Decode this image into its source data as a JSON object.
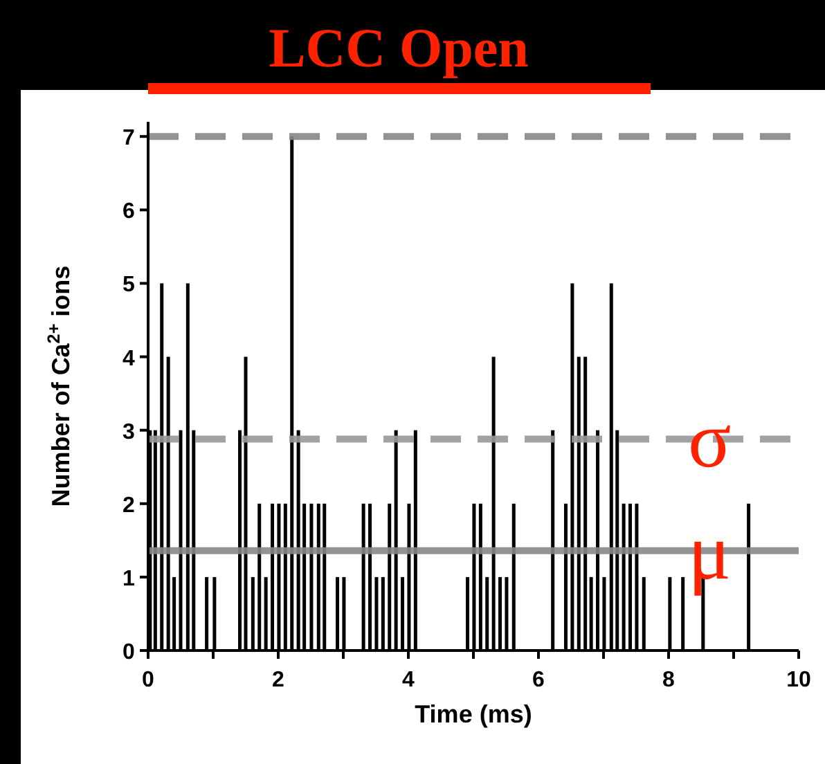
{
  "chart_data": {
    "type": "bar",
    "title": "LCC Open",
    "xlabel": "Time (ms)",
    "ylabel": "Number of Ca$^{2+}$ ions",
    "x": [
      0.03,
      0.11,
      0.21,
      0.31,
      0.4,
      0.5,
      0.61,
      0.7,
      0.9,
      1.02,
      1.41,
      1.5,
      1.61,
      1.71,
      1.81,
      1.91,
      2.01,
      2.11,
      2.21,
      2.31,
      2.4,
      2.51,
      2.62,
      2.71,
      2.91,
      3.01,
      3.31,
      3.41,
      3.51,
      3.61,
      3.71,
      3.81,
      3.91,
      4.01,
      4.11,
      4.91,
      5.01,
      5.11,
      5.21,
      5.31,
      5.41,
      5.51,
      5.62,
      6.22,
      6.42,
      6.52,
      6.62,
      6.72,
      6.81,
      6.91,
      7.01,
      7.12,
      7.21,
      7.31,
      7.41,
      7.51,
      7.62,
      8.02,
      8.22,
      8.53,
      9.23
    ],
    "values": [
      3,
      3,
      5,
      4,
      1,
      3,
      5,
      3,
      1,
      1,
      3,
      4,
      1,
      2,
      1,
      2,
      2,
      2,
      7,
      3,
      2,
      2,
      2,
      2,
      1,
      1,
      2,
      2,
      1,
      1,
      2,
      3,
      1,
      2,
      3,
      1,
      2,
      2,
      1,
      4,
      1,
      1,
      2,
      3,
      2,
      5,
      4,
      4,
      1,
      3,
      1,
      5,
      3,
      2,
      2,
      2,
      1,
      1,
      1,
      1,
      2
    ],
    "color": "#000000",
    "xlim": [
      0,
      10
    ],
    "xticks": [
      0,
      {
        "value": 1,
        "label": null
      },
      2,
      {
        "value": 3,
        "label": null
      },
      4,
      {
        "value": 5,
        "label": null
      },
      6,
      {
        "value": 7,
        "label": null
      },
      8,
      {
        "value": 9,
        "label": null
      },
      10
    ],
    "ylim": [
      0,
      7.2
    ],
    "yticks": [
      0,
      1,
      2,
      3,
      4,
      5,
      6,
      7
    ],
    "grid": false,
    "ref_lines": [
      {
        "axis": "y",
        "value": 7,
        "label": null,
        "color": "#888888",
        "line_style": "dashed"
      },
      {
        "axis": "y",
        "value": 2.88,
        "label": "σ",
        "color": "#999999",
        "line_style": "dashed"
      },
      {
        "axis": "y",
        "value": 1.36,
        "label": "μ",
        "color": "#888888",
        "line_style": "solid"
      }
    ]
  }
}
